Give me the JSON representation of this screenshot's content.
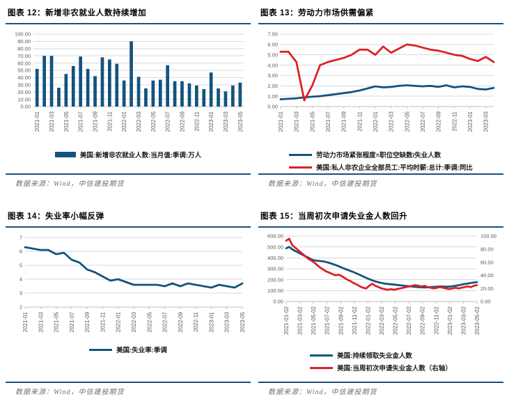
{
  "theme": {
    "series_navy": "#12537f",
    "series_red": "#dd2027",
    "rule_navy": "#1c4f7c",
    "grid": "#d9d9d9",
    "axis_line": "#bfbfbf",
    "axis_text": "#595959",
    "source_text": "#6f6f6f"
  },
  "chart_data": [
    {
      "type": "bar",
      "title": "图表 12：新增非农就业人数持续增加",
      "source": "数据来源：Wind，中信建投期货",
      "categories": [
        "2021-01",
        "2021-02",
        "2021-03",
        "2021-04",
        "2021-05",
        "2021-06",
        "2021-07",
        "2021-08",
        "2021-09",
        "2021-10",
        "2021-11",
        "2021-12",
        "2022-01",
        "2022-02",
        "2022-03",
        "2022-04",
        "2022-05",
        "2022-06",
        "2022-07",
        "2022-08",
        "2022-09",
        "2022-10",
        "2022-11",
        "2022-12",
        "2023-01",
        "2023-02",
        "2023-03",
        "2023-04",
        "2023-05"
      ],
      "x_tick_labels": [
        "2021-01",
        "2021-03",
        "2021-05",
        "2021-07",
        "2021-09",
        "2021-11",
        "2022-01",
        "2022-03",
        "2022-05",
        "2022-07",
        "2022-09",
        "2022-11",
        "2023-01",
        "2023-03",
        "2023-05"
      ],
      "y_left": {
        "min": 0,
        "max": 100,
        "step": 10,
        "decimals": 2
      },
      "grid": true,
      "legend_position": "bottom",
      "series": [
        {
          "name": "美国:新增非农就业人数:当月值:季调:万人",
          "marker": "bar",
          "color": "navy",
          "axis": "left",
          "values": [
            52,
            70,
            70,
            26,
            45,
            56,
            69,
            52,
            42,
            68,
            65,
            59,
            36,
            90,
            41,
            25,
            36,
            37,
            57,
            35,
            35,
            32,
            29,
            24,
            47,
            25,
            21,
            29,
            33
          ]
        }
      ]
    },
    {
      "type": "line",
      "title": "图表 13：劳动力市场供需偏紧",
      "source": "数据来源：Wind，中信建投期货",
      "x": [
        "2021-01",
        "2021-02",
        "2021-03",
        "2021-04",
        "2021-05",
        "2021-06",
        "2021-07",
        "2021-08",
        "2021-09",
        "2021-10",
        "2021-11",
        "2021-12",
        "2022-01",
        "2022-02",
        "2022-03",
        "2022-04",
        "2022-05",
        "2022-06",
        "2022-07",
        "2022-08",
        "2022-09",
        "2022-10",
        "2022-11",
        "2022-12",
        "2023-01",
        "2023-02",
        "2023-03",
        "2023-04"
      ],
      "x_tick_labels": [
        "2021-01",
        "2021-03",
        "2021-05",
        "2021-07",
        "2021-09",
        "2021-11",
        "2022-01",
        "2022-03",
        "2022-05",
        "2022-07",
        "2022-09",
        "2022-11",
        "2023-01",
        "2023-03"
      ],
      "label_step": 2,
      "y_left": {
        "min": 0,
        "max": 7,
        "step": 1,
        "decimals": 2
      },
      "grid": true,
      "legend_position": "bottom",
      "series": [
        {
          "name": "劳动力市场紧张程度=职位空缺数/失业人数",
          "marker": "line",
          "color": "navy",
          "axis": "left",
          "values": [
            0.7,
            0.75,
            0.8,
            0.88,
            0.95,
            1.0,
            1.1,
            1.2,
            1.3,
            1.4,
            1.55,
            1.75,
            1.95,
            1.85,
            1.9,
            2.0,
            2.05,
            2.0,
            1.95,
            2.0,
            1.9,
            2.05,
            1.85,
            1.95,
            1.9,
            1.7,
            1.65,
            1.8
          ]
        },
        {
          "name": "美国:私人非农企业全部员工:平均时薪:总计:季调:同比",
          "marker": "line",
          "color": "red",
          "axis": "left",
          "values": [
            5.3,
            5.3,
            4.3,
            0.6,
            2.0,
            4.0,
            4.3,
            4.5,
            4.7,
            5.0,
            5.5,
            5.5,
            5.0,
            5.8,
            5.2,
            5.6,
            6.0,
            5.9,
            5.7,
            5.5,
            5.4,
            5.2,
            5.0,
            4.9,
            4.6,
            4.4,
            4.8,
            4.3
          ]
        }
      ]
    },
    {
      "type": "line",
      "title": "图表 14：失业率小幅反弹",
      "source": "数据来源：Wind，中信建投期货",
      "x": [
        "2021-01",
        "2021-02",
        "2021-03",
        "2021-04",
        "2021-05",
        "2021-06",
        "2021-07",
        "2021-08",
        "2021-09",
        "2021-10",
        "2021-11",
        "2021-12",
        "2022-01",
        "2022-02",
        "2022-03",
        "2022-04",
        "2022-05",
        "2022-06",
        "2022-07",
        "2022-08",
        "2022-09",
        "2022-10",
        "2022-11",
        "2022-12",
        "2023-01",
        "2023-02",
        "2023-03",
        "2023-04",
        "2023-05"
      ],
      "x_tick_labels": [
        "2021-01",
        "2021-03",
        "2021-05",
        "2021-07",
        "2021-09",
        "2021-11",
        "2022-01",
        "2022-03",
        "2022-05",
        "2022-07",
        "2022-09",
        "2022-11",
        "2023-01",
        "2023-03",
        "2023-05"
      ],
      "label_step": 2,
      "y_left": {
        "min": 2,
        "max": 7,
        "step": 1,
        "decimals": 0
      },
      "grid": true,
      "legend_position": "bottom",
      "series": [
        {
          "name": "美国:失业率:季调",
          "marker": "line",
          "color": "navy",
          "axis": "left",
          "values": [
            6.3,
            6.2,
            6.1,
            6.1,
            5.8,
            5.9,
            5.4,
            5.2,
            4.7,
            4.5,
            4.2,
            3.9,
            4.0,
            3.8,
            3.6,
            3.6,
            3.6,
            3.6,
            3.5,
            3.7,
            3.5,
            3.7,
            3.6,
            3.5,
            3.4,
            3.6,
            3.5,
            3.4,
            3.7
          ]
        }
      ]
    },
    {
      "type": "line",
      "title": "图表 15：当周初次申请失业金人数回升",
      "source": "数据来源：Wind，中信建投期货",
      "x_note": "weekly data 2021-01-02 to 2023-05-27, sampled biweekly (63 points)",
      "x_tick_labels": [
        "2021-01-02",
        "2021-03-02",
        "2021-05-02",
        "2021-07-02",
        "2021-09-02",
        "2021-11-02",
        "2022-01-02",
        "2022-03-02",
        "2022-05-02",
        "2022-07-02",
        "2022-09-02",
        "2022-11-02",
        "2023-01-02",
        "2023-03-02",
        "2023-05-02"
      ],
      "y_left": {
        "min": 0,
        "max": 600,
        "step": 100,
        "decimals": 2
      },
      "y_right": {
        "min": 0,
        "max": 100,
        "step": 20,
        "decimals": 2
      },
      "grid": true,
      "legend_position": "bottom",
      "series": [
        {
          "name": "美国:持续领取失业金人数",
          "marker": "line",
          "color": "navy",
          "axis": "left",
          "values": [
            488,
            500,
            478,
            462,
            448,
            432,
            418,
            405,
            388,
            378,
            374,
            371,
            368,
            362,
            354,
            345,
            335,
            324,
            312,
            300,
            290,
            279,
            268,
            256,
            243,
            230,
            217,
            205,
            194,
            184,
            176,
            170,
            165,
            161,
            158,
            155,
            152,
            149,
            146,
            143,
            140,
            137,
            134,
            132,
            130,
            129,
            130,
            132,
            134,
            136,
            138,
            137,
            135,
            137,
            140,
            144,
            149,
            155,
            160,
            165,
            170,
            174,
            178
          ]
        },
        {
          "name": "美国:当周初次申请失业金人数（右轴）",
          "marker": "line",
          "color": "red",
          "axis": "right",
          "values": [
            93,
            96,
            86,
            82,
            78,
            74,
            70,
            66,
            63,
            60,
            56,
            52,
            49,
            46,
            44,
            42,
            40,
            41,
            39,
            36,
            33,
            31,
            28,
            26,
            23,
            21,
            20,
            24,
            27,
            24,
            22,
            20,
            19,
            18,
            19,
            18,
            19,
            20,
            21,
            22,
            23,
            24,
            25,
            24,
            23,
            24,
            22,
            21,
            20,
            21,
            22,
            21,
            20,
            19,
            20,
            21,
            20,
            21,
            22,
            23,
            22,
            24,
            25
          ]
        }
      ]
    }
  ]
}
